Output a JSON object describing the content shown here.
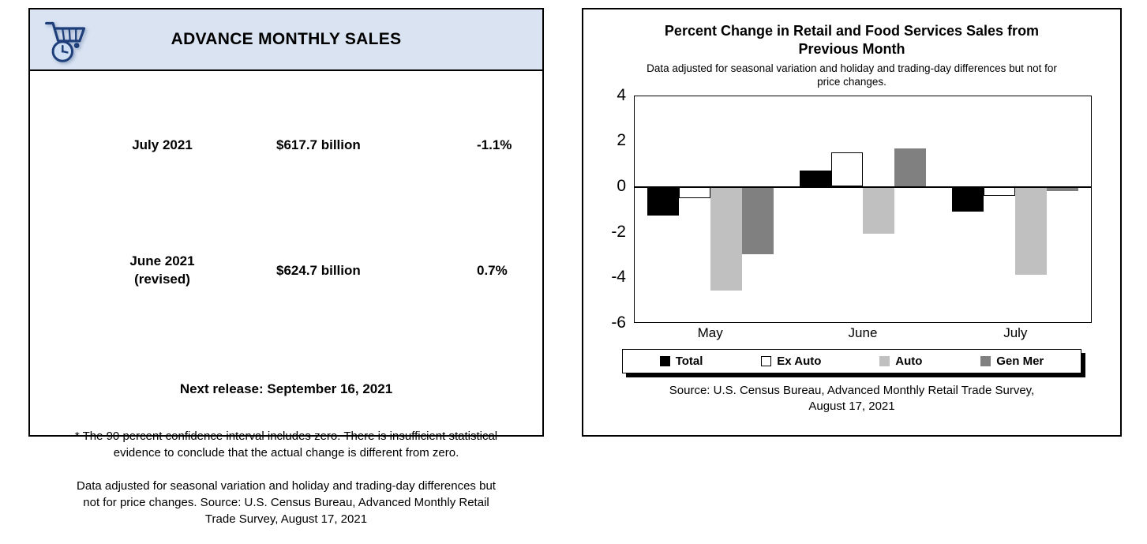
{
  "left_panel": {
    "title": "ADVANCE MONTHLY SALES",
    "rows": [
      {
        "period": "July 2021",
        "period_note": "",
        "value": "$617.7 billion",
        "change": "-1.1%"
      },
      {
        "period": "June 2021",
        "period_note": "(revised)",
        "value": "$624.7 billion",
        "change": "0.7%"
      }
    ],
    "next_release": "Next release: September 16, 2021",
    "footnote_1": "* The 90 percent confidence interval includes zero. There is insufficient statistical\nevidence to conclude that the actual change is different from zero.",
    "footnote_2": "Data adjusted for seasonal variation and holiday and trading-day differences but\nnot for price changes. Source: U.S. Census Bureau, Advanced Monthly Retail\nTrade Survey, August 17, 2021"
  },
  "right_panel": {
    "source": "Source: U.S. Census Bureau, Advanced Monthly Retail Trade Survey,\nAugust 17, 2021"
  },
  "chart_data": {
    "type": "bar",
    "title": "Percent Change in Retail and Food Services Sales from\nPrevious Month",
    "subtitle": "Data adjusted for seasonal variation and holiday and trading-day differences but not for\nprice changes.",
    "categories": [
      "May",
      "June",
      "July"
    ],
    "series": [
      {
        "name": "Total",
        "color": "#000000",
        "values": [
          -1.3,
          0.7,
          -1.1
        ]
      },
      {
        "name": "Ex Auto",
        "color": "#ffffff",
        "border": "#000000",
        "values": [
          -0.5,
          1.5,
          -0.4
        ]
      },
      {
        "name": "Auto",
        "color": "#c0c0c0",
        "values": [
          -4.6,
          -2.1,
          -3.9
        ]
      },
      {
        "name": "Gen Mer",
        "color": "#808080",
        "values": [
          -3.0,
          1.7,
          -0.2
        ]
      }
    ],
    "ylim": [
      -6,
      4
    ],
    "yticks": [
      4,
      2,
      0,
      -2,
      -4,
      -6
    ],
    "grid": false,
    "legend_position": "bottom",
    "accent_colors": {
      "header_band": "#d9e3f2",
      "border": "#000000"
    }
  }
}
